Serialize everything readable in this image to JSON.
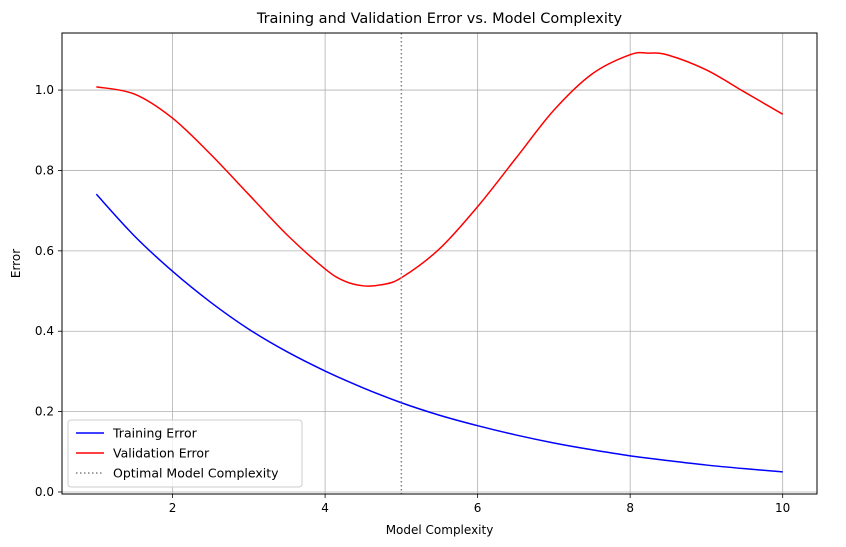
{
  "chart_data": {
    "type": "line",
    "title": "Training and Validation Error vs. Model Complexity",
    "xlabel": "Model Complexity",
    "ylabel": "Error",
    "xlim": [
      0.55,
      10.45
    ],
    "ylim": [
      -0.005,
      1.142
    ],
    "xticks": [
      2,
      4,
      6,
      8,
      10
    ],
    "xtick_labels": [
      "2",
      "4",
      "6",
      "8",
      "10"
    ],
    "yticks": [
      0.0,
      0.2,
      0.4,
      0.6,
      0.8,
      1.0
    ],
    "ytick_labels": [
      "0.0",
      "0.2",
      "0.4",
      "0.6",
      "0.8",
      "1.0"
    ],
    "grid": true,
    "legend_position": "lower-left",
    "series": [
      {
        "name": "Training Error",
        "color": "#0000ff",
        "style": "solid",
        "x": [
          1,
          1.5,
          2,
          2.5,
          3,
          3.5,
          4,
          4.5,
          5,
          5.5,
          6,
          6.5,
          7,
          7.5,
          8,
          8.5,
          9,
          9.5,
          10
        ],
        "y": [
          0.741,
          0.637,
          0.549,
          0.472,
          0.405,
          0.349,
          0.301,
          0.259,
          0.222,
          0.191,
          0.165,
          0.142,
          0.122,
          0.105,
          0.09,
          0.078,
          0.067,
          0.058,
          0.05
        ]
      },
      {
        "name": "Validation Error",
        "color": "#ff0000",
        "style": "solid",
        "x": [
          1,
          1.5,
          2,
          2.5,
          3,
          3.5,
          4,
          4.25,
          4.5,
          4.75,
          5,
          5.5,
          6,
          6.5,
          7,
          7.5,
          8,
          8.25,
          8.5,
          9,
          9.5,
          10
        ],
        "y": [
          1.008,
          0.99,
          0.93,
          0.84,
          0.74,
          0.64,
          0.555,
          0.525,
          0.513,
          0.516,
          0.533,
          0.605,
          0.71,
          0.83,
          0.95,
          1.04,
          1.088,
          1.092,
          1.087,
          1.05,
          0.995,
          0.94
        ]
      },
      {
        "name": "Optimal Model Complexity",
        "color": "#808080",
        "style": "dotted",
        "vline_x": 5
      }
    ]
  }
}
